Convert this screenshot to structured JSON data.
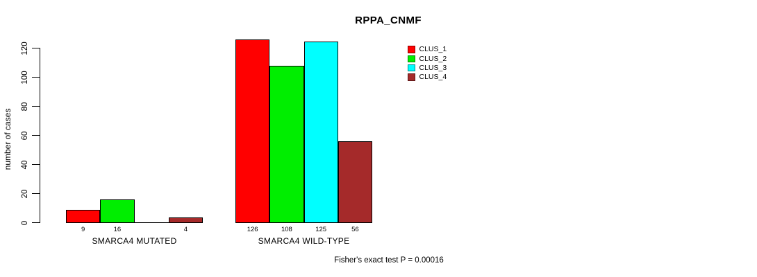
{
  "chart_data": {
    "type": "bar",
    "title": "RPPA_CNMF",
    "ylabel": "number of cases",
    "xlabel": "",
    "ylim": [
      0,
      120
    ],
    "yticks": [
      0,
      20,
      40,
      60,
      80,
      100,
      120
    ],
    "categories": [
      "SMARCA4 MUTATED",
      "SMARCA4 WILD-TYPE"
    ],
    "series": [
      {
        "name": "CLUS_1",
        "color": "#ff0000",
        "values": [
          9,
          126
        ]
      },
      {
        "name": "CLUS_2",
        "color": "#00ee00",
        "values": [
          16,
          108
        ]
      },
      {
        "name": "CLUS_3",
        "color": "#00ffff",
        "values": [
          0,
          125
        ]
      },
      {
        "name": "CLUS_4",
        "color": "#a52a2a",
        "values": [
          4,
          56
        ]
      }
    ],
    "bar_value_labels": [
      [
        "9",
        "16",
        "",
        "4"
      ],
      [
        "126",
        "108",
        "125",
        "56"
      ]
    ],
    "legend": {
      "position": "top-right",
      "entries": [
        "CLUS_1",
        "CLUS_2",
        "CLUS_3",
        "CLUS_4"
      ]
    },
    "annotation": "Fisher's exact test P = 0.00016",
    "grid": false,
    "background": "#ffffff"
  }
}
